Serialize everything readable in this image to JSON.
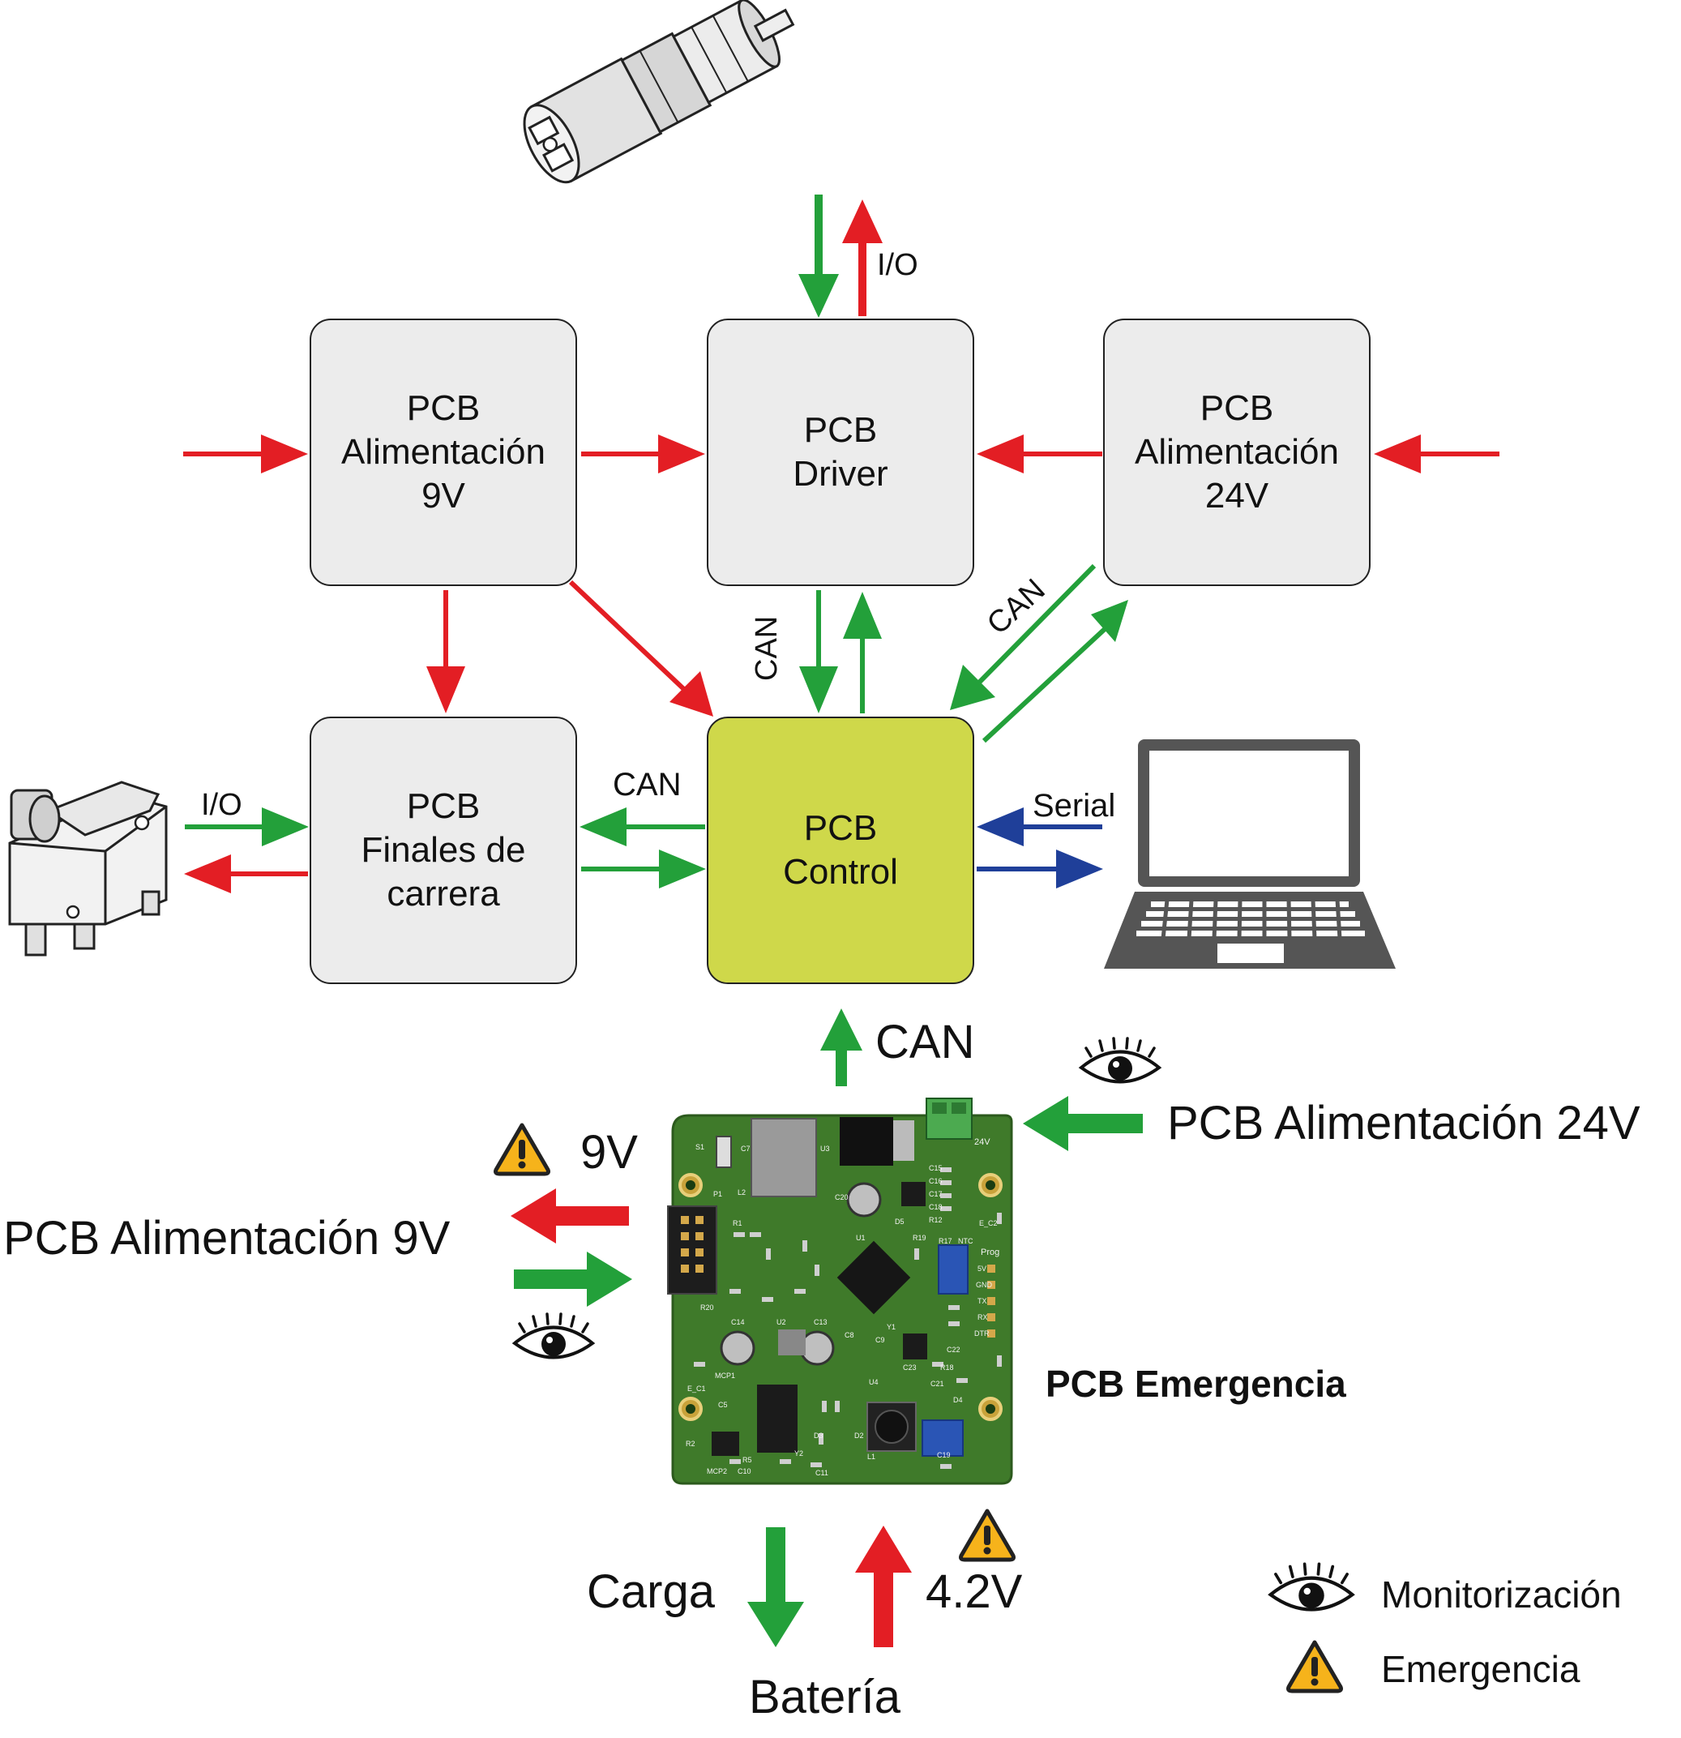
{
  "boxes": {
    "alim9": [
      "PCB",
      "Alimentación",
      "9V"
    ],
    "driver": [
      "PCB",
      "Driver"
    ],
    "alim24": [
      "PCB",
      "Alimentación",
      "24V"
    ],
    "finales": [
      "PCB",
      "Finales de",
      "carrera"
    ],
    "control": [
      "PCB",
      "Control"
    ]
  },
  "labels": {
    "io_top": "I/O",
    "can_vertical": "CAN",
    "can_diagonal": "CAN",
    "can_left": "CAN",
    "io_left": "I/O",
    "serial": "Serial",
    "can_emergency": "CAN",
    "emerg_24v": "PCB Alimentación 24V",
    "emerg_9v": "PCB Alimentación 9V",
    "nine_v": "9V",
    "pcb_emergencia": "PCB Emergencia",
    "carga": "Carga",
    "v42": "4.2V",
    "bateria": "Batería",
    "legend_monitor": "Monitorización",
    "legend_emergency": "Emergencia"
  },
  "pcb_silkscreen": {
    "connector": "24V",
    "header": "Prog",
    "pins": [
      "5V",
      "GND",
      "TX",
      "RX",
      "DTR"
    ],
    "marks": [
      "S1",
      "C7",
      "U3",
      "L2",
      "P1",
      "C20",
      "C15",
      "C16",
      "C17",
      "C18",
      "R12",
      "D5",
      "E_C2",
      "R17",
      "NTC",
      "R19",
      "U1",
      "Y1",
      "C13",
      "C14",
      "U2",
      "MCP1",
      "C23",
      "C21",
      "C22",
      "R18",
      "U4",
      "D4",
      "C19",
      "L1",
      "D2",
      "D3",
      "Y2",
      "C11",
      "C10",
      "MCP2",
      "R2",
      "R5",
      "C5",
      "R20",
      "E_C1",
      "C8",
      "C9",
      "R1"
    ]
  },
  "colors": {
    "red": "#e31e24",
    "green": "#23a03a",
    "blue": "#1f3f99",
    "box": "#ececec",
    "control": "#cfd84a",
    "pcb": "#3f7a2a",
    "warning": "#f6b31b"
  },
  "icons": [
    "motor-icon",
    "laptop-icon",
    "limit-switch-icon",
    "eye-icon",
    "warning-icon",
    "pcb-board-icon"
  ]
}
